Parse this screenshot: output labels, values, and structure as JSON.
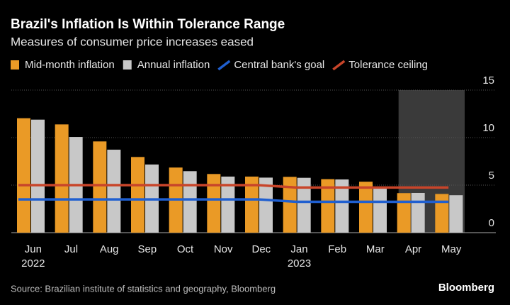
{
  "chart_data": {
    "type": "bar",
    "title": "Brazil's Inflation Is Within Tolerance Range",
    "subtitle": "Measures of consumer price increases eased",
    "source": "Source: Brazilian institute of statistics and geography, Bloomberg",
    "brand": "Bloomberg",
    "categories": [
      "Jun",
      "Jul",
      "Aug",
      "Sep",
      "Oct",
      "Nov",
      "Dec",
      "Jan",
      "Feb",
      "Mar",
      "Apr",
      "May"
    ],
    "x_year_labels": [
      "2022",
      null,
      null,
      null,
      null,
      null,
      null,
      "2023",
      null,
      null,
      null,
      null
    ],
    "series": [
      {
        "name": "Mid-month inflation",
        "kind": "bar",
        "color": "#ea9a26",
        "values": [
          12.04,
          11.39,
          9.6,
          7.96,
          6.85,
          6.17,
          5.9,
          5.87,
          5.63,
          5.36,
          4.16,
          4.07
        ]
      },
      {
        "name": "Annual inflation",
        "kind": "bar",
        "color": "#c8c8c8",
        "values": [
          11.89,
          10.07,
          8.73,
          7.17,
          6.47,
          5.9,
          5.79,
          5.77,
          5.6,
          4.65,
          4.18,
          3.94
        ]
      },
      {
        "name": "Central bank's goal",
        "kind": "line",
        "color": "#1f5fd0",
        "values": [
          3.5,
          3.5,
          3.5,
          3.5,
          3.5,
          3.5,
          3.5,
          3.25,
          3.25,
          3.25,
          3.25,
          3.25
        ]
      },
      {
        "name": "Tolerance ceiling",
        "kind": "line",
        "color": "#c8452a",
        "values": [
          5.0,
          5.0,
          5.0,
          5.0,
          5.0,
          5.0,
          5.0,
          4.75,
          4.75,
          4.75,
          4.75,
          4.75
        ]
      }
    ],
    "ylim": [
      0,
      15
    ],
    "yticks": [
      0,
      5,
      10,
      15
    ],
    "grid": true
  }
}
